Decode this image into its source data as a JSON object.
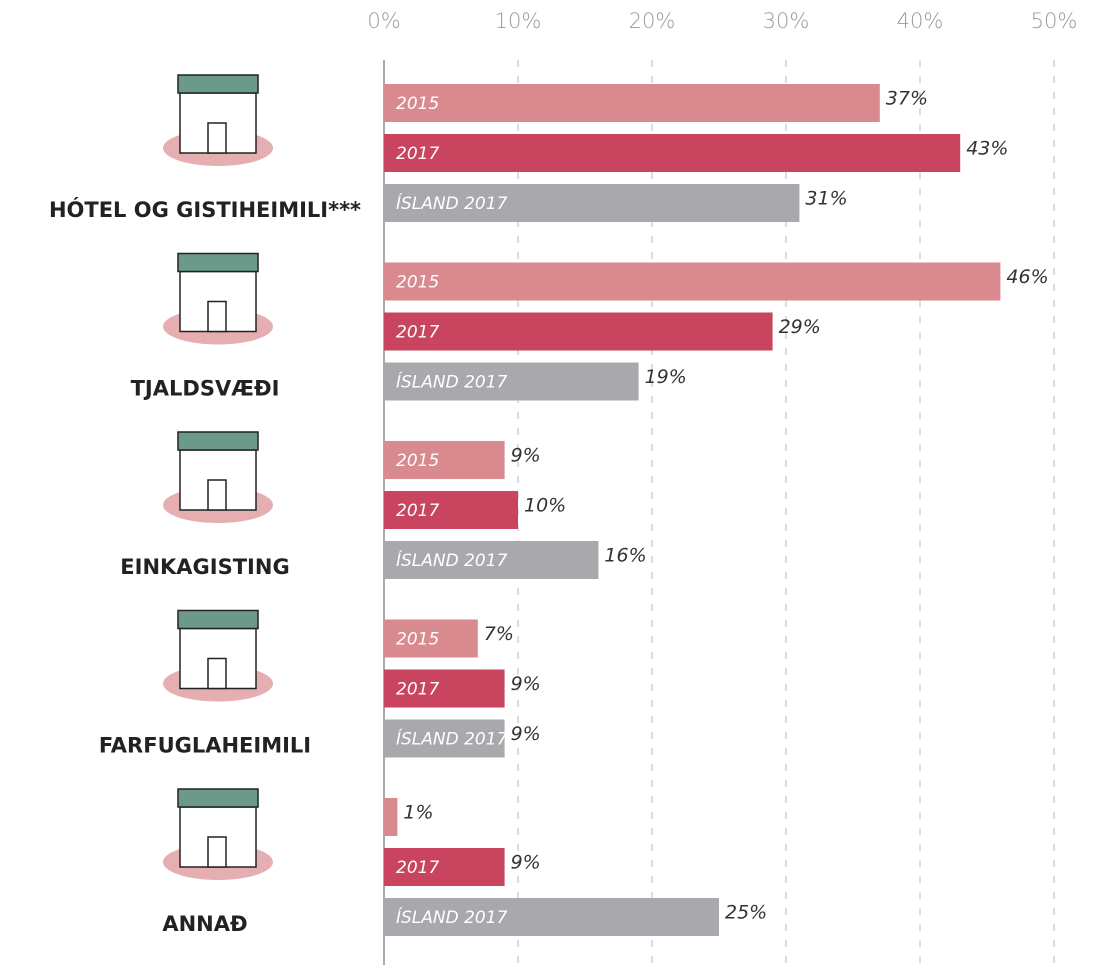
{
  "chart_data": {
    "type": "bar",
    "orientation": "horizontal",
    "categories": [
      "HÓTEL OG GISTIHEIMILI***",
      "TJALDSVÆÐI",
      "EINKAGISTING",
      "FARFUGLAHEIMILI",
      "ANNAÐ"
    ],
    "series": [
      {
        "name": "2015",
        "color": "#d98a8e",
        "values": [
          37,
          46,
          9,
          7,
          1
        ],
        "value_labels": [
          "37%",
          "46%",
          "9%",
          "7%",
          "1%"
        ]
      },
      {
        "name": "2017",
        "color": "#c9455f",
        "values": [
          43,
          29,
          10,
          9,
          9
        ],
        "value_labels": [
          "43%",
          "29%",
          "10%",
          "9%",
          "9%"
        ]
      },
      {
        "name": "ÍSLAND 2017",
        "color": "#a9a9ad",
        "values": [
          31,
          19,
          16,
          9,
          25
        ],
        "value_labels": [
          "31%",
          "19%",
          "16%",
          "9%",
          "25%"
        ]
      }
    ],
    "xlim": [
      0,
      50
    ],
    "xticks": [
      {
        "value": 0,
        "label": "0%"
      },
      {
        "value": 10,
        "label": "10%"
      },
      {
        "value": 20,
        "label": "20%"
      },
      {
        "value": 30,
        "label": "30%"
      },
      {
        "value": 40,
        "label": "40%"
      },
      {
        "value": 50,
        "label": "50%"
      }
    ],
    "grid": true
  }
}
